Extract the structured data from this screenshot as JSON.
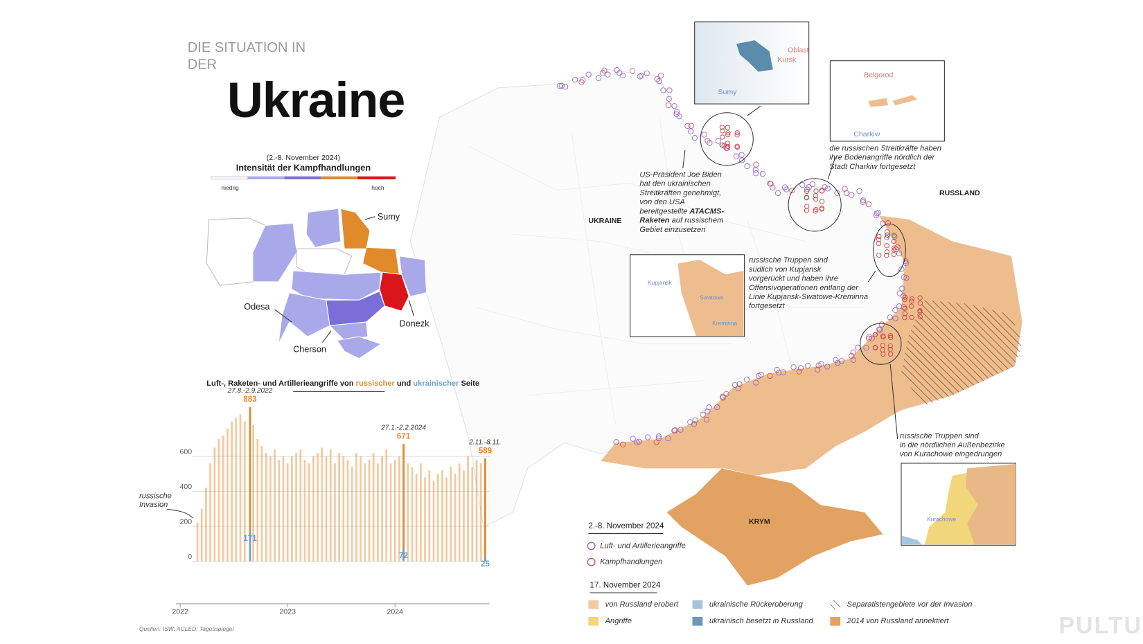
{
  "header": {
    "kicker": [
      "DIE SITUATION IN",
      "DER"
    ],
    "title": "Ukraine"
  },
  "intensity": {
    "period": "(2.-8. November 2024)",
    "title": "Intensität der Kampfhandlungen",
    "low": "niedrig",
    "high": "hoch",
    "regions": [
      "Sumy",
      "Odesa",
      "Donezk",
      "Cherson"
    ]
  },
  "chart_data": {
    "type": "bar",
    "title_parts": [
      "Luft-, Raketen- und Artillerieangriffe von",
      "und",
      "Seite"
    ],
    "x": [
      2022.16,
      2022.2,
      2022.24,
      2022.28,
      2022.32,
      2022.36,
      2022.4,
      2022.44,
      2022.48,
      2022.52,
      2022.56,
      2022.6,
      2022.65,
      2022.68,
      2022.72,
      2022.76,
      2022.8,
      2022.84,
      2022.88,
      2022.92,
      2022.96,
      2023.0,
      2023.04,
      2023.08,
      2023.12,
      2023.16,
      2023.2,
      2023.24,
      2023.28,
      2023.32,
      2023.36,
      2023.4,
      2023.44,
      2023.48,
      2023.52,
      2023.56,
      2023.6,
      2023.64,
      2023.68,
      2023.72,
      2023.76,
      2023.8,
      2023.84,
      2023.88,
      2023.92,
      2023.96,
      2024.0,
      2024.04,
      2024.08,
      2024.12,
      2024.16,
      2024.2,
      2024.24,
      2024.28,
      2024.32,
      2024.36,
      2024.4,
      2024.44,
      2024.48,
      2024.52,
      2024.56,
      2024.6,
      2024.64,
      2024.68,
      2024.72,
      2024.76,
      2024.8,
      2024.84
    ],
    "xlim": [
      2022,
      2024.9
    ],
    "xticks": [
      2022,
      2023,
      2024
    ],
    "ylim": [
      -260,
      900
    ],
    "yticks": [
      0,
      200,
      400,
      600
    ],
    "grid": true,
    "series": [
      {
        "name": "russischer",
        "color": "#e08a2c",
        "values": [
          220,
          300,
          420,
          560,
          650,
          700,
          720,
          760,
          800,
          820,
          840,
          800,
          883,
          780,
          700,
          660,
          620,
          600,
          640,
          580,
          600,
          560,
          600,
          620,
          640,
          580,
          560,
          600,
          620,
          650,
          600,
          640,
          560,
          620,
          600,
          580,
          540,
          620,
          600,
          560,
          580,
          620,
          560,
          600,
          640,
          560,
          580,
          600,
          671,
          560,
          540,
          500,
          560,
          480,
          520,
          460,
          500,
          520,
          480,
          540,
          500,
          560,
          520,
          600,
          540,
          580,
          560,
          589
        ],
        "annotations": [
          {
            "label": "27.8.-2.9.2022",
            "x": 2022.65,
            "value": 883
          },
          {
            "label": "27.1.-2.2.2024",
            "x": 2024.08,
            "value": 671
          },
          {
            "label": "2.11.-8.11.",
            "x": 2024.84,
            "value": 589
          }
        ]
      },
      {
        "name": "ukrainischer",
        "color": "#6f9fc4",
        "values": [
          60,
          80,
          100,
          110,
          120,
          130,
          120,
          110,
          140,
          150,
          160,
          150,
          171,
          130,
          120,
          110,
          100,
          120,
          110,
          100,
          90,
          100,
          90,
          110,
          100,
          95,
          100,
          110,
          120,
          100,
          90,
          85,
          95,
          100,
          90,
          80,
          85,
          90,
          95,
          80,
          85,
          75,
          80,
          90,
          85,
          80,
          80,
          70,
          72,
          60,
          55,
          50,
          45,
          50,
          40,
          45,
          35,
          40,
          30,
          35,
          40,
          30,
          35,
          30,
          28,
          30,
          25,
          25
        ],
        "annotations": [
          {
            "x": 2022.65,
            "value": 171
          },
          {
            "x": 2024.08,
            "value": 72
          },
          {
            "x": 2024.84,
            "value": 25
          }
        ]
      }
    ],
    "note": [
      "russische",
      "Invasion"
    ]
  },
  "map": {
    "labels": {
      "ukraine": "UKRAINE",
      "russia": "RUSSLAND",
      "crimea": "KRYM"
    },
    "insets": {
      "kursk": [
        "Oblast",
        "Kursk",
        "Sumy"
      ],
      "belgorod": [
        "Belgorod",
        "Charkiw"
      ],
      "kupjansk": [
        "Kupjansk",
        "Swatowe",
        "Kreminna"
      ],
      "kurachowe": [
        "Kurachowe"
      ]
    },
    "notes": {
      "biden": {
        "lines": [
          "US-Präsident Joe Biden",
          "hat den ukrainischen",
          "Streitkräften genehmigt,",
          "von den USA",
          "bereitgestellte"
        ],
        "bold": [
          "ATACMS-",
          "Raketen"
        ],
        "after": [
          "auf russischem",
          "Gebiet einzusetzen"
        ]
      },
      "charkiw": [
        "die russischen Streitkräfte haben",
        "ihre Bodenangriffe nördlich der",
        "Stadt Charkiw fortgesetzt"
      ],
      "kupjansk": [
        "russische Truppen sind",
        "südlich von Kupjansk",
        "vorgerückt und haben ihre",
        "Offensivoperationen entlang der",
        "Linie Kupjansk-Swatowe-Kreminna",
        "fortgesetzt"
      ],
      "kurachowe": [
        "russische Truppen sind",
        "in die nördlichen Außenbezirke",
        "von Kurachowe eingedrungen"
      ]
    }
  },
  "legend": {
    "week": {
      "title": "2.-8. November 2024",
      "items": [
        "Luft- und Artillerieangriffe",
        "Kampfhandlungen"
      ]
    },
    "status": {
      "title": "17. November 2024",
      "items": [
        "von Russland erobert",
        "ukrainische Rückeroberung",
        "Separatistengebiete vor der Invasion",
        "Angriffe",
        "ukrainisch besetzt in Russland",
        "2014 von Russland annektiert"
      ]
    }
  },
  "source": "Quellen: ISW; ACLED; Tagesspiegel",
  "watermark": "PULTU"
}
